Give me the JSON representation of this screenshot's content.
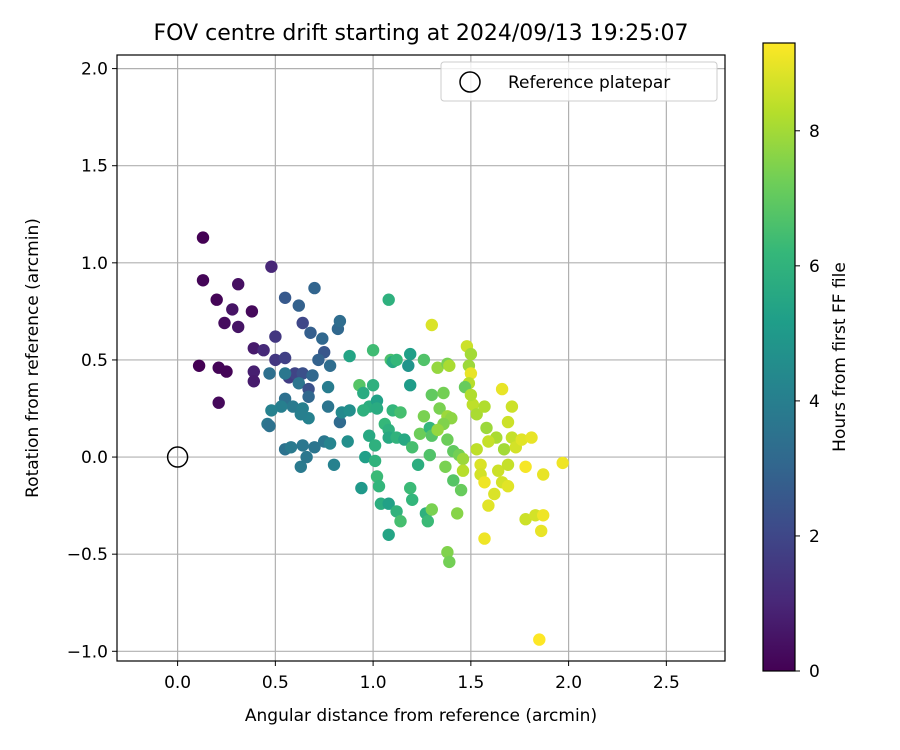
{
  "chart_data": {
    "type": "scatter",
    "title": "FOV centre drift starting at 2024/09/13 19:25:07",
    "xlabel": "Angular distance from reference (arcmin)",
    "ylabel": "Rotation from reference (arcmin)",
    "xlim": [
      -0.31,
      2.8
    ],
    "ylim": [
      -1.05,
      2.07
    ],
    "x_ticks": [
      0.0,
      0.5,
      1.0,
      1.5,
      2.0,
      2.5
    ],
    "x_tick_labels": [
      "0.0",
      "0.5",
      "1.0",
      "1.5",
      "2.0",
      "2.5"
    ],
    "y_ticks": [
      -1.0,
      -0.5,
      0.0,
      0.5,
      1.0,
      1.5,
      2.0
    ],
    "y_tick_labels": [
      "−1.0",
      "−0.5",
      "0.0",
      "0.5",
      "1.0",
      "1.5",
      "2.0"
    ],
    "grid": true,
    "legend": {
      "position": "upper right",
      "entries": [
        "Reference platepar"
      ]
    },
    "reference_point": {
      "x": 0.0,
      "y": 0.0,
      "marker": "hollow circle",
      "color": "#000000"
    },
    "colorbar": {
      "label": "Hours from first FF file",
      "colormap": "viridis",
      "range": [
        0,
        9.3
      ],
      "ticks": [
        0,
        2,
        4,
        6,
        8
      ],
      "tick_labels": [
        "0",
        "2",
        "4",
        "6",
        "8"
      ],
      "colors": [
        "#440154",
        "#482878",
        "#3e4989",
        "#31688e",
        "#26828e",
        "#1f9e89",
        "#35b779",
        "#6ece58",
        "#b5de2b",
        "#fde725"
      ]
    },
    "series": [
      {
        "points": [
          [
            0.13,
            1.13,
            0.0
          ],
          [
            0.13,
            0.91,
            0.1
          ],
          [
            0.2,
            0.81,
            0.1
          ],
          [
            0.31,
            0.89,
            0.4
          ],
          [
            0.28,
            0.76,
            0.5
          ],
          [
            0.24,
            0.69,
            0.3
          ],
          [
            0.31,
            0.67,
            0.5
          ],
          [
            0.38,
            0.75,
            0.2
          ],
          [
            0.48,
            0.98,
            1.0
          ],
          [
            0.11,
            0.47,
            0.0
          ],
          [
            0.21,
            0.46,
            0.1
          ],
          [
            0.25,
            0.44,
            0.1
          ],
          [
            0.21,
            0.28,
            0.2
          ],
          [
            0.39,
            0.56,
            0.7
          ],
          [
            0.39,
            0.44,
            0.8
          ],
          [
            0.39,
            0.39,
            0.7
          ],
          [
            0.44,
            0.55,
            1.1
          ],
          [
            0.5,
            0.62,
            1.5
          ],
          [
            0.5,
            0.5,
            1.5
          ],
          [
            0.55,
            0.51,
            1.8
          ],
          [
            0.57,
            0.41,
            1.7
          ],
          [
            0.6,
            0.43,
            1.9
          ],
          [
            0.55,
            0.82,
            2.6
          ],
          [
            0.62,
            0.78,
            2.9
          ],
          [
            0.7,
            0.87,
            3.0
          ],
          [
            0.64,
            0.69,
            2.0
          ],
          [
            0.68,
            0.64,
            2.8
          ],
          [
            0.74,
            0.61,
            3.1
          ],
          [
            0.75,
            0.54,
            2.5
          ],
          [
            0.72,
            0.5,
            2.9
          ],
          [
            0.82,
            0.66,
            3.1
          ],
          [
            0.83,
            0.7,
            3.3
          ],
          [
            0.78,
            0.47,
            3.3
          ],
          [
            0.64,
            0.43,
            2.3
          ],
          [
            0.69,
            0.42,
            3.1
          ],
          [
            0.62,
            0.38,
            3.6
          ],
          [
            0.67,
            0.35,
            2.3
          ],
          [
            0.67,
            0.31,
            3.1
          ],
          [
            0.55,
            0.3,
            3.4
          ],
          [
            0.59,
            0.26,
            3.8
          ],
          [
            0.64,
            0.25,
            4.0
          ],
          [
            0.67,
            0.2,
            4.1
          ],
          [
            0.63,
            0.22,
            4.0
          ],
          [
            0.53,
            0.26,
            4.0
          ],
          [
            0.48,
            0.24,
            4.1
          ],
          [
            0.55,
            0.43,
            3.7
          ],
          [
            0.47,
            0.43,
            3.4
          ],
          [
            0.46,
            0.17,
            3.7
          ],
          [
            0.47,
            0.16,
            3.5
          ],
          [
            0.55,
            0.04,
            3.5
          ],
          [
            0.58,
            0.05,
            3.8
          ],
          [
            0.64,
            0.06,
            3.7
          ],
          [
            0.63,
            -0.05,
            3.8
          ],
          [
            0.66,
            0.0,
            3.7
          ],
          [
            0.7,
            0.05,
            3.6
          ],
          [
            0.75,
            0.08,
            3.7
          ],
          [
            0.78,
            0.07,
            4.2
          ],
          [
            0.8,
            -0.04,
            4.1
          ],
          [
            0.77,
            0.26,
            3.6
          ],
          [
            0.77,
            0.36,
            3.9
          ],
          [
            0.83,
            0.18,
            3.2
          ],
          [
            0.84,
            0.23,
            4.4
          ],
          [
            0.88,
            0.24,
            4.6
          ],
          [
            0.88,
            0.52,
            5.4
          ],
          [
            0.93,
            0.37,
            6.8
          ],
          [
            0.95,
            0.33,
            5.7
          ],
          [
            0.98,
            0.26,
            5.8
          ],
          [
            1.0,
            0.37,
            5.9
          ],
          [
            1.02,
            0.29,
            5.3
          ],
          [
            1.02,
            0.25,
            5.7
          ],
          [
            0.95,
            0.24,
            5.9
          ],
          [
            0.87,
            0.08,
            4.6
          ],
          [
            0.94,
            -0.16,
            5.0
          ],
          [
            0.98,
            0.11,
            5.6
          ],
          [
            0.96,
            0.0,
            5.2
          ],
          [
            1.0,
            0.55,
            6.4
          ],
          [
            1.08,
            0.81,
            5.9
          ],
          [
            1.09,
            0.5,
            6.6
          ],
          [
            1.1,
            0.49,
            5.6
          ],
          [
            1.12,
            0.5,
            6.2
          ],
          [
            1.19,
            0.53,
            5.2
          ],
          [
            1.18,
            0.47,
            4.8
          ],
          [
            1.26,
            0.5,
            6.7
          ],
          [
            1.19,
            0.37,
            5.1
          ],
          [
            1.1,
            0.24,
            6.1
          ],
          [
            1.14,
            0.23,
            6.5
          ],
          [
            1.06,
            0.17,
            6.2
          ],
          [
            1.08,
            0.14,
            5.9
          ],
          [
            1.08,
            0.1,
            5.6
          ],
          [
            1.12,
            0.1,
            6.0
          ],
          [
            1.16,
            0.09,
            5.6
          ],
          [
            1.2,
            0.05,
            6.5
          ],
          [
            1.01,
            0.06,
            5.9
          ],
          [
            1.01,
            -0.02,
            6.0
          ],
          [
            1.02,
            -0.1,
            6.3
          ],
          [
            1.03,
            -0.15,
            6.1
          ],
          [
            1.04,
            -0.24,
            5.8
          ],
          [
            1.08,
            -0.24,
            5.3
          ],
          [
            1.08,
            -0.4,
            5.4
          ],
          [
            1.12,
            -0.28,
            6.0
          ],
          [
            1.14,
            -0.33,
            6.5
          ],
          [
            1.19,
            -0.16,
            6.3
          ],
          [
            1.2,
            -0.22,
            6.1
          ],
          [
            1.23,
            -0.04,
            5.8
          ],
          [
            1.27,
            -0.29,
            5.9
          ],
          [
            1.28,
            -0.33,
            6.3
          ],
          [
            1.3,
            -0.27,
            7.4
          ],
          [
            1.24,
            0.12,
            7.2
          ],
          [
            1.29,
            0.15,
            6.1
          ],
          [
            1.3,
            0.11,
            6.8
          ],
          [
            1.29,
            0.01,
            6.7
          ],
          [
            1.26,
            0.21,
            7.4
          ],
          [
            1.3,
            0.32,
            7.0
          ],
          [
            1.3,
            0.68,
            8.8
          ],
          [
            1.33,
            0.46,
            7.8
          ],
          [
            1.38,
            0.48,
            7.4
          ],
          [
            1.39,
            0.47,
            8.1
          ],
          [
            1.36,
            0.33,
            7.3
          ],
          [
            1.34,
            0.25,
            7.4
          ],
          [
            1.38,
            0.21,
            7.9
          ],
          [
            1.4,
            0.2,
            7.7
          ],
          [
            1.36,
            0.17,
            7.5
          ],
          [
            1.33,
            0.14,
            7.8
          ],
          [
            1.38,
            0.09,
            7.2
          ],
          [
            1.41,
            0.03,
            7.0
          ],
          [
            1.44,
            0.01,
            7.3
          ],
          [
            1.46,
            -0.01,
            7.9
          ],
          [
            1.37,
            -0.05,
            7.4
          ],
          [
            1.41,
            -0.12,
            6.8
          ],
          [
            1.45,
            -0.17,
            7.1
          ],
          [
            1.46,
            -0.07,
            8.3
          ],
          [
            1.43,
            -0.29,
            7.6
          ],
          [
            1.38,
            -0.49,
            7.5
          ],
          [
            1.39,
            -0.54,
            7.3
          ],
          [
            1.48,
            0.57,
            8.6
          ],
          [
            1.5,
            0.53,
            8.0
          ],
          [
            1.49,
            0.47,
            7.9
          ],
          [
            1.5,
            0.43,
            9.0
          ],
          [
            1.49,
            0.38,
            8.3
          ],
          [
            1.47,
            0.36,
            7.1
          ],
          [
            1.51,
            0.27,
            8.4
          ],
          [
            1.5,
            0.32,
            8.2
          ],
          [
            1.53,
            0.22,
            8.1
          ],
          [
            1.57,
            0.26,
            8.2
          ],
          [
            1.58,
            0.15,
            7.9
          ],
          [
            1.63,
            0.1,
            8.1
          ],
          [
            1.59,
            0.08,
            8.5
          ],
          [
            1.53,
            0.04,
            8.4
          ],
          [
            1.55,
            -0.04,
            8.8
          ],
          [
            1.55,
            -0.09,
            8.7
          ],
          [
            1.57,
            -0.13,
            9.1
          ],
          [
            1.57,
            -0.42,
            9.1
          ],
          [
            1.59,
            -0.25,
            8.9
          ],
          [
            1.62,
            -0.19,
            8.8
          ],
          [
            1.64,
            -0.07,
            8.6
          ],
          [
            1.66,
            -0.13,
            8.7
          ],
          [
            1.67,
            0.04,
            8.0
          ],
          [
            1.69,
            -0.04,
            8.5
          ],
          [
            1.69,
            -0.15,
            8.9
          ],
          [
            1.69,
            0.18,
            8.6
          ],
          [
            1.71,
            0.1,
            8.5
          ],
          [
            1.73,
            0.05,
            8.7
          ],
          [
            1.71,
            0.26,
            8.6
          ],
          [
            1.66,
            0.35,
            9.0
          ],
          [
            1.76,
            0.09,
            8.9
          ],
          [
            1.78,
            -0.05,
            9.2
          ],
          [
            1.81,
            0.1,
            9.0
          ],
          [
            1.78,
            -0.32,
            8.6
          ],
          [
            1.83,
            -0.3,
            8.7
          ],
          [
            1.86,
            -0.38,
            9.0
          ],
          [
            1.87,
            -0.3,
            9.1
          ],
          [
            1.87,
            -0.09,
            9.0
          ],
          [
            1.97,
            -0.03,
            9.1
          ],
          [
            1.85,
            -0.94,
            9.3
          ]
        ]
      }
    ]
  }
}
